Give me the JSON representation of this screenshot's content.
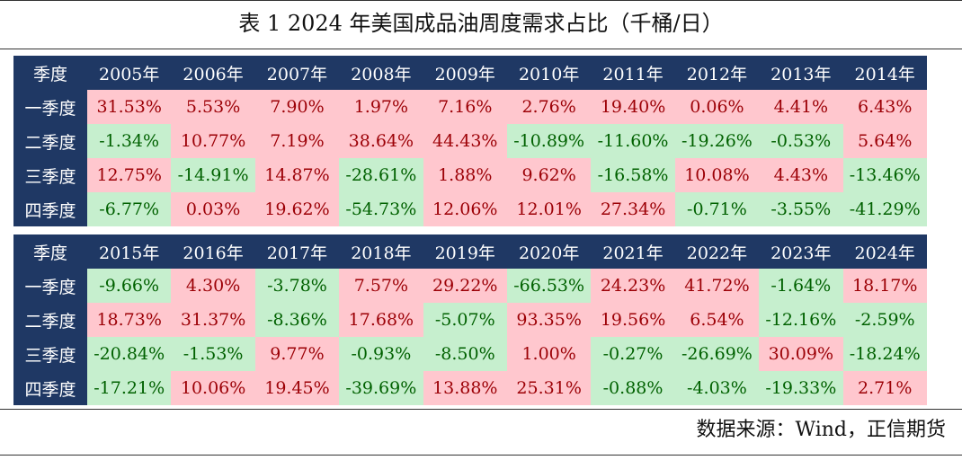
{
  "title": "表 1 2024 年美国成品油周度需求占比（千桶/日）",
  "source": "数据来源：Wind，正信期货",
  "colors": {
    "header_bg": "#1f3864",
    "positive_bg": "#ffc7ce",
    "positive_text": "#9c0006",
    "negative_bg": "#c6efce",
    "negative_text": "#006100"
  },
  "chart_data": {
    "type": "table",
    "row_header_label": "季度",
    "row_labels": [
      "一季度",
      "二季度",
      "三季度",
      "四季度"
    ],
    "tables": [
      {
        "columns": [
          "2005年",
          "2006年",
          "2007年",
          "2008年",
          "2009年",
          "2010年",
          "2011年",
          "2012年",
          "2013年",
          "2014年"
        ],
        "rows": [
          [
            "31.53%",
            "5.53%",
            "7.90%",
            "1.97%",
            "7.16%",
            "2.76%",
            "19.40%",
            "0.06%",
            "4.41%",
            "6.43%"
          ],
          [
            "-1.34%",
            "10.77%",
            "7.19%",
            "38.64%",
            "44.43%",
            "-10.89%",
            "-11.60%",
            "-19.26%",
            "-0.53%",
            "5.64%"
          ],
          [
            "12.75%",
            "-14.91%",
            "14.87%",
            "-28.61%",
            "1.88%",
            "9.62%",
            "-16.58%",
            "10.08%",
            "4.43%",
            "-13.46%"
          ],
          [
            "-6.77%",
            "0.03%",
            "19.62%",
            "-54.73%",
            "12.06%",
            "12.01%",
            "27.34%",
            "-0.71%",
            "-3.55%",
            "-41.29%"
          ]
        ]
      },
      {
        "columns": [
          "2015年",
          "2016年",
          "2017年",
          "2018年",
          "2019年",
          "2020年",
          "2021年",
          "2022年",
          "2023年",
          "2024年"
        ],
        "rows": [
          [
            "-9.66%",
            "4.30%",
            "-3.78%",
            "7.57%",
            "29.22%",
            "-66.53%",
            "24.23%",
            "41.72%",
            "-1.64%",
            "18.17%"
          ],
          [
            "18.73%",
            "31.37%",
            "-8.36%",
            "17.68%",
            "-5.07%",
            "93.35%",
            "19.56%",
            "6.54%",
            "-12.16%",
            "-2.59%"
          ],
          [
            "-20.84%",
            "-1.53%",
            "9.77%",
            "-0.93%",
            "-8.50%",
            "1.00%",
            "-0.27%",
            "-26.69%",
            "30.09%",
            "-18.24%"
          ],
          [
            "-17.21%",
            "10.06%",
            "19.45%",
            "-39.69%",
            "13.88%",
            "25.31%",
            "-0.88%",
            "-4.03%",
            "-19.33%",
            "2.71%"
          ]
        ]
      }
    ]
  }
}
